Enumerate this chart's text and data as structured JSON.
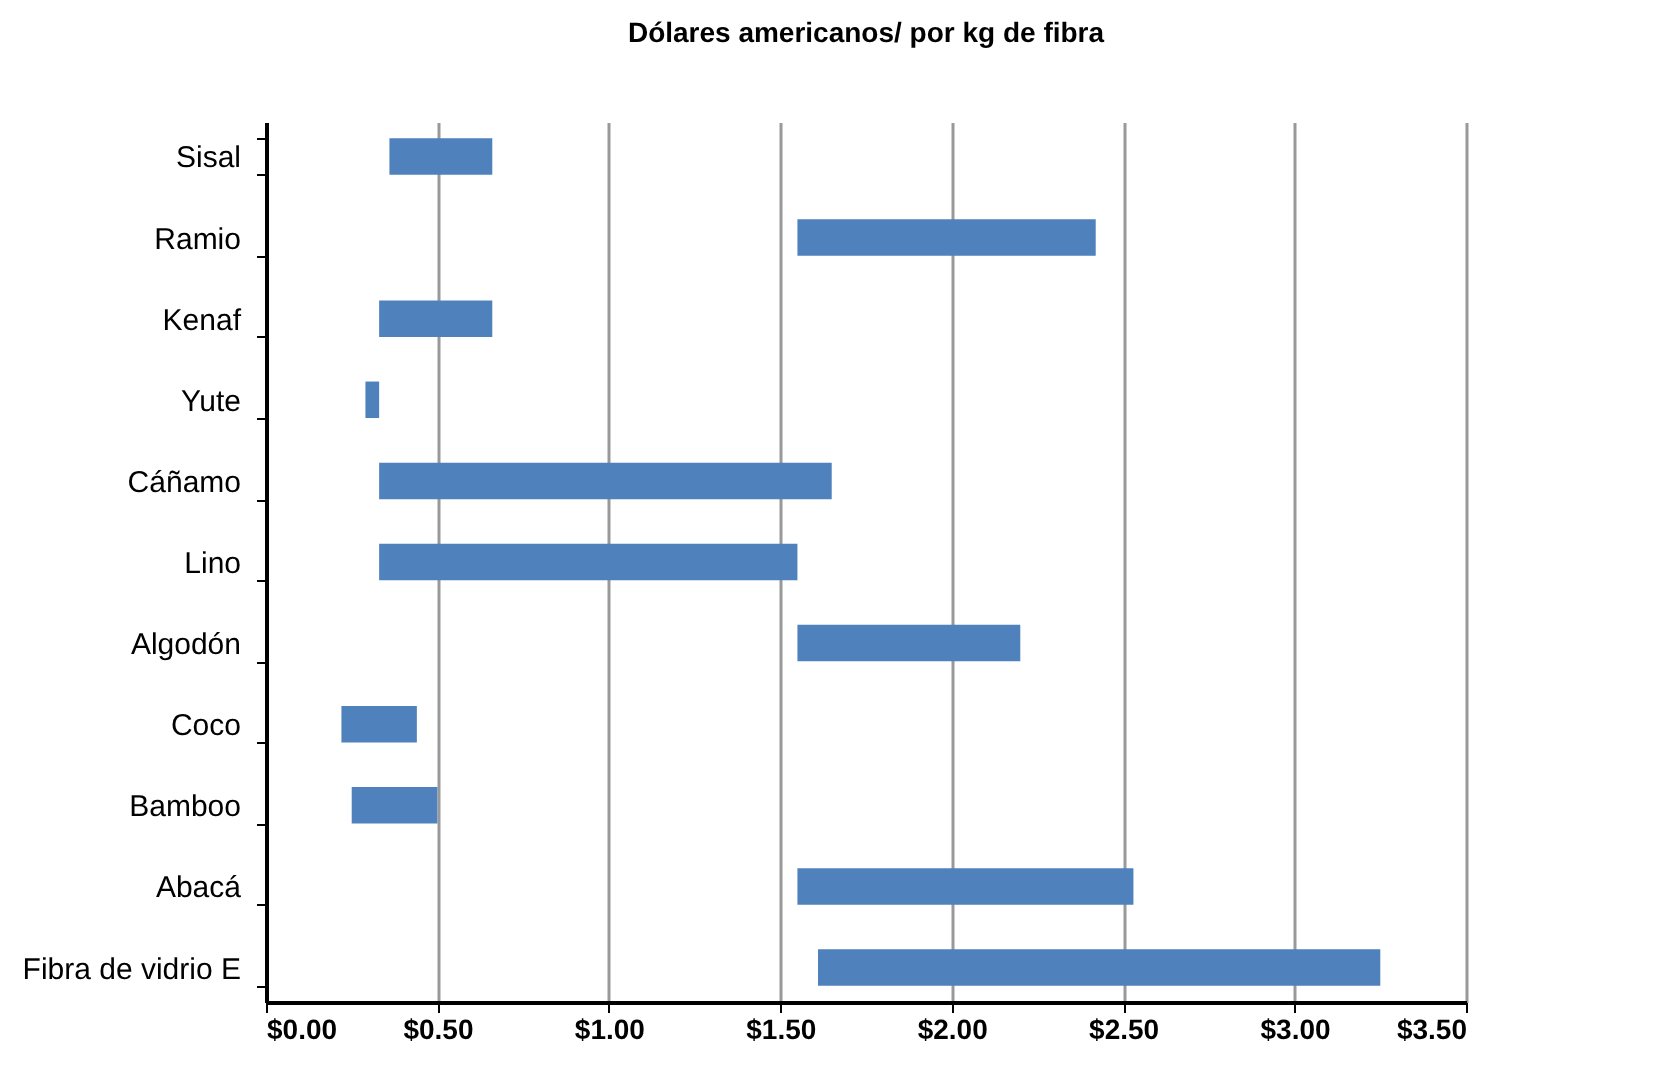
{
  "chart_data": {
    "type": "bar",
    "orientation": "horizontal",
    "title": "Dólares americanos/ por kg de fibra",
    "categories": [
      "Sisal",
      "Ramio",
      "Kenaf",
      "Yute",
      "Cáñamo",
      "Lino",
      "Algodón",
      "Coco",
      "Bamboo",
      "Abacá",
      "Fibra de vidrio E"
    ],
    "base": [
      0.36,
      1.55,
      0.33,
      0.29,
      0.33,
      0.33,
      1.55,
      0.22,
      0.25,
      1.55,
      1.61
    ],
    "values": [
      0.3,
      0.87,
      0.33,
      0.04,
      1.32,
      1.22,
      0.65,
      0.22,
      0.25,
      0.98,
      1.64
    ],
    "color": "#4f81bd",
    "xlim": [
      0,
      3.5
    ],
    "xticks": [
      {
        "value": 0,
        "label": "$0.00"
      },
      {
        "value": 0.5,
        "label": "$0.50"
      },
      {
        "value": 1,
        "label": "$1.00"
      },
      {
        "value": 1.5,
        "label": "$1.50"
      },
      {
        "value": 2,
        "label": "$2.00"
      },
      {
        "value": 2.5,
        "label": "$2.50"
      },
      {
        "value": 3,
        "label": "$3.00"
      },
      {
        "value": 3.5,
        "label": "$3.50"
      }
    ],
    "grid": "x"
  }
}
